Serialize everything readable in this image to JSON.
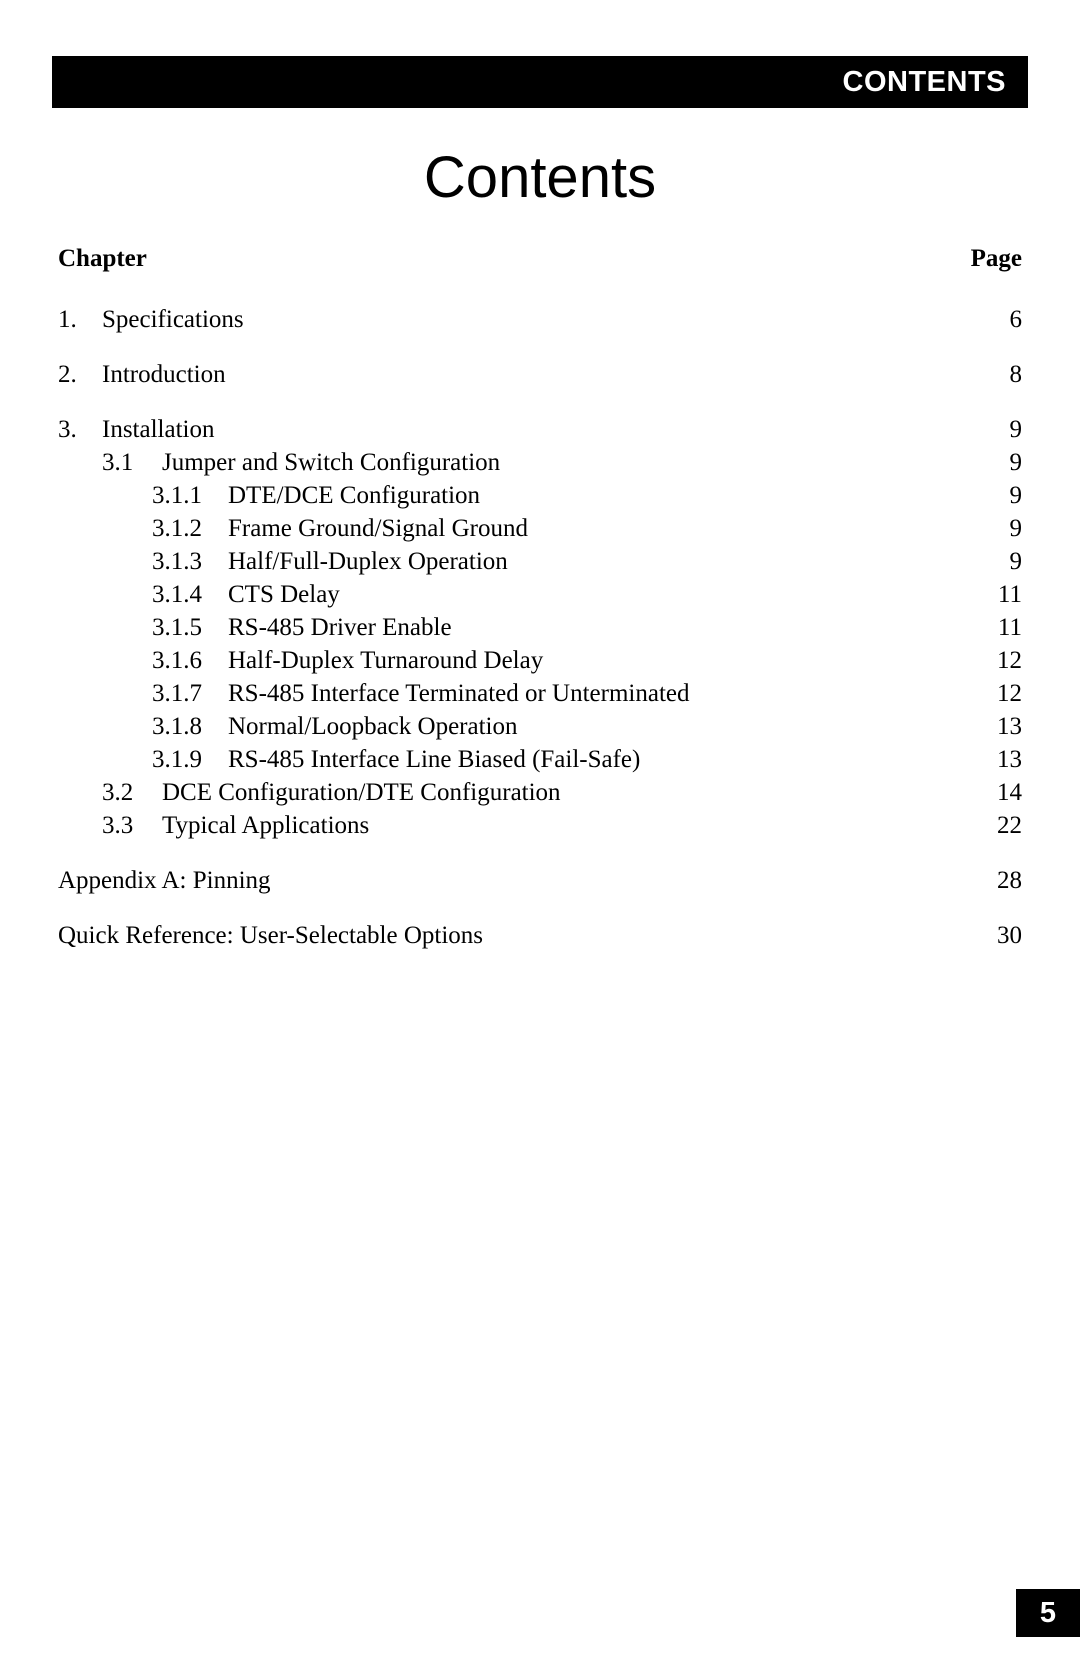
{
  "header": {
    "bar_label": "CONTENTS"
  },
  "title": "Contents",
  "columns": {
    "left": "Chapter",
    "right": "Page"
  },
  "page_number": "5",
  "entries": [
    {
      "level": "ch",
      "num": "1.",
      "label": "Specifications",
      "page": "6"
    },
    {
      "level": "ch",
      "num": "2.",
      "label": "Introduction",
      "page": "8"
    },
    {
      "level": "ch",
      "num": "3.",
      "label": "Installation",
      "page": "9"
    },
    {
      "level": "sec",
      "num": "3.1",
      "label": "Jumper and Switch Configuration",
      "page": "9"
    },
    {
      "level": "sub",
      "num": "3.1.1",
      "label": "DTE/DCE Configuration",
      "page": "9"
    },
    {
      "level": "sub",
      "num": "3.1.2",
      "label": "Frame Ground/Signal Ground",
      "page": "9"
    },
    {
      "level": "sub",
      "num": "3.1.3",
      "label": "Half/Full-Duplex Operation",
      "page": "9"
    },
    {
      "level": "sub",
      "num": "3.1.4",
      "label": "CTS Delay",
      "page": "11"
    },
    {
      "level": "sub",
      "num": "3.1.5",
      "label": "RS-485 Driver Enable",
      "page": "11"
    },
    {
      "level": "sub",
      "num": "3.1.6",
      "label": "Half-Duplex Turnaround Delay",
      "page": "12"
    },
    {
      "level": "sub",
      "num": "3.1.7",
      "label": "RS-485 Interface Terminated or Unterminated",
      "page": "12"
    },
    {
      "level": "sub",
      "num": "3.1.8",
      "label": "Normal/Loopback Operation",
      "page": "13"
    },
    {
      "level": "sub",
      "num": "3.1.9",
      "label": "RS-485 Interface Line Biased (Fail-Safe)",
      "page": "13"
    },
    {
      "level": "sec",
      "num": "3.2",
      "label": "DCE Configuration/DTE Configuration",
      "page": "14"
    },
    {
      "level": "sec",
      "num": "3.3",
      "label": "Typical Applications",
      "page": "22"
    },
    {
      "level": "none",
      "num": "",
      "label": "Appendix A:  Pinning",
      "page": "28",
      "gap": true
    },
    {
      "level": "none",
      "num": "",
      "label": "Quick Reference: User-Selectable Options",
      "page": "30",
      "gap": true
    }
  ]
}
